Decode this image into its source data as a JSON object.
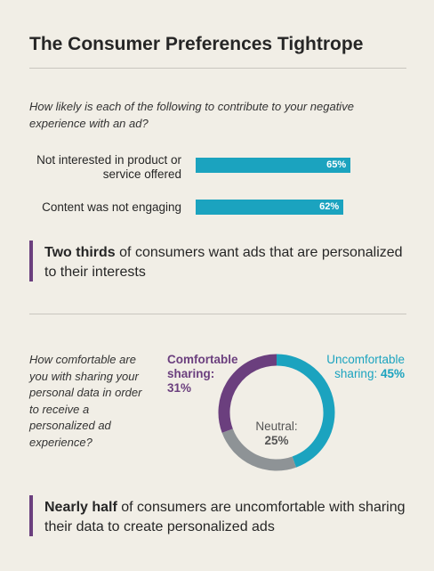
{
  "title": "The Consumer Preferences Tightrope",
  "chart_data": [
    {
      "type": "bar",
      "orientation": "horizontal",
      "title": "How likely is each of the following to contribute to your negative experience with an ad?",
      "categories": [
        "Not interested in product or service offered",
        "Content was not engaging"
      ],
      "values": [
        65,
        62
      ],
      "value_labels": [
        "65%",
        "62%"
      ],
      "color": "#1ba3bf"
    },
    {
      "type": "donut",
      "title": "How comfortable are you with sharing your personal data in order to receive a personalized ad experience?",
      "categories": [
        "Uncomfortable sharing:",
        "Neutral:",
        "Comfortable sharing:"
      ],
      "values": [
        45,
        25,
        31
      ],
      "value_labels": [
        "45%",
        "25%",
        "31%"
      ],
      "colors": [
        "#1ba3bf",
        "#8e9396",
        "#6b3f7e"
      ]
    }
  ],
  "callouts": [
    {
      "bold": "Two thirds",
      "text": " of consumers want ads that are personalized to their interests"
    },
    {
      "bold": "Nearly half",
      "text": " of consumers are uncomfortable with sharing their data to create personalized ads"
    }
  ]
}
